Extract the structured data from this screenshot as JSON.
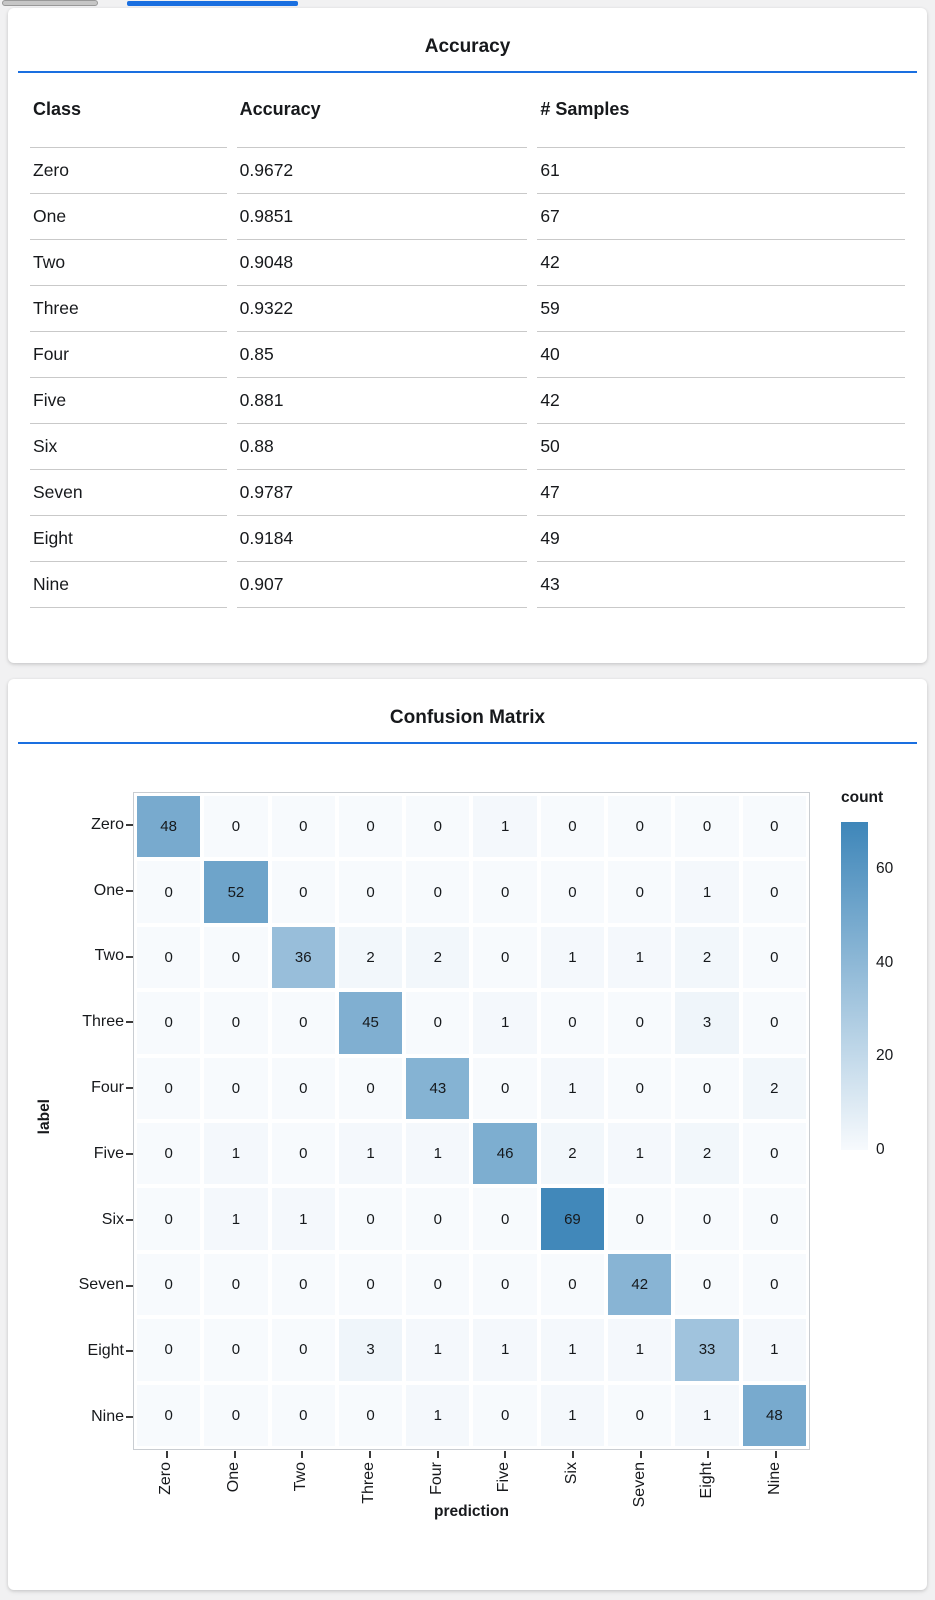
{
  "colors": {
    "accent_blue": "#1a6fe0",
    "heat_low": "#f7fafd",
    "heat_high": "#3e86b9",
    "scrollbar_gray": "#c6c6c6"
  },
  "accuracy_panel": {
    "title": "Accuracy",
    "columns": [
      "Class",
      "Accuracy",
      "# Samples"
    ],
    "rows": [
      [
        "Zero",
        "0.9672",
        "61"
      ],
      [
        "One",
        "0.9851",
        "67"
      ],
      [
        "Two",
        "0.9048",
        "42"
      ],
      [
        "Three",
        "0.9322",
        "59"
      ],
      [
        "Four",
        "0.85",
        "40"
      ],
      [
        "Five",
        "0.881",
        "42"
      ],
      [
        "Six",
        "0.88",
        "50"
      ],
      [
        "Seven",
        "0.9787",
        "47"
      ],
      [
        "Eight",
        "0.9184",
        "49"
      ],
      [
        "Nine",
        "0.907",
        "43"
      ]
    ]
  },
  "confusion_panel": {
    "title": "Confusion Matrix"
  },
  "chart_data": {
    "type": "heatmap",
    "title": "Confusion Matrix",
    "xlabel": "prediction",
    "ylabel": "label",
    "categories": [
      "Zero",
      "One",
      "Two",
      "Three",
      "Four",
      "Five",
      "Six",
      "Seven",
      "Eight",
      "Nine"
    ],
    "matrix": [
      [
        48,
        0,
        0,
        0,
        0,
        1,
        0,
        0,
        0,
        0
      ],
      [
        0,
        52,
        0,
        0,
        0,
        0,
        0,
        0,
        1,
        0
      ],
      [
        0,
        0,
        36,
        2,
        2,
        0,
        1,
        1,
        2,
        0
      ],
      [
        0,
        0,
        0,
        45,
        0,
        1,
        0,
        0,
        3,
        0
      ],
      [
        0,
        0,
        0,
        0,
        43,
        0,
        1,
        0,
        0,
        2
      ],
      [
        0,
        1,
        0,
        1,
        1,
        46,
        2,
        1,
        2,
        0
      ],
      [
        0,
        1,
        1,
        0,
        0,
        0,
        69,
        0,
        0,
        0
      ],
      [
        0,
        0,
        0,
        0,
        0,
        0,
        0,
        42,
        0,
        0
      ],
      [
        0,
        0,
        0,
        3,
        1,
        1,
        1,
        1,
        33,
        1
      ],
      [
        0,
        0,
        0,
        0,
        1,
        0,
        1,
        0,
        1,
        48
      ]
    ],
    "legend": {
      "title": "count",
      "ticks": [
        60,
        40,
        20,
        0
      ],
      "min": 0,
      "max": 70,
      "position": "right"
    }
  }
}
